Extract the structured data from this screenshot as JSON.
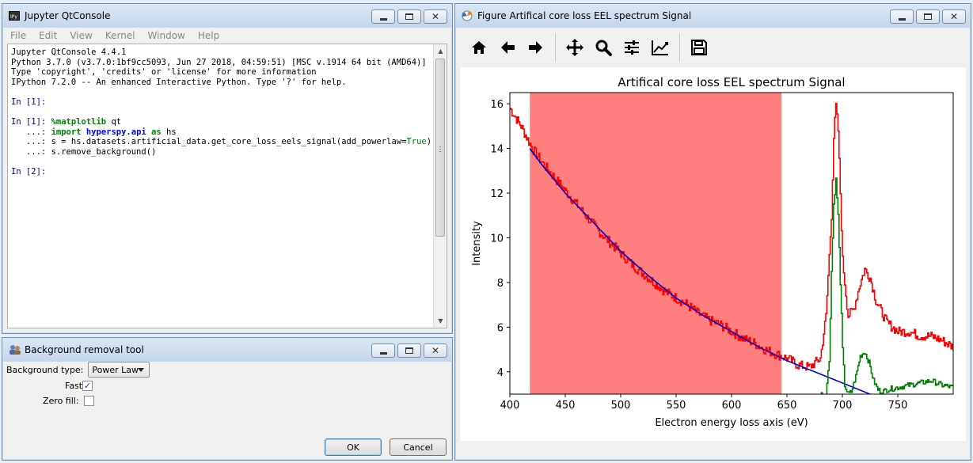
{
  "console": {
    "title": "Jupyter QtConsole",
    "menu": [
      "File",
      "Edit",
      "View",
      "Kernel",
      "Window",
      "Help"
    ],
    "lines": [
      "Jupyter QtConsole 4.4.1",
      "Python 3.7.0 (v3.7.0:1bf9cc5093, Jun 27 2018, 04:59:51) [MSC v.1914 64 bit (AMD64)]",
      "Type 'copyright', 'credits' or 'license' for more information",
      "IPython 7.2.0 -- An enhanced Interactive Python. Type '?' for help.",
      "",
      "In [1]:",
      "",
      "In [1]: %matplotlib qt",
      "   ...: import hyperspy.api as hs",
      "   ...: s = hs.datasets.artificial_data.get_core_loss_eels_signal(add_powerlaw=True)",
      "   ...: s.remove_background()",
      "",
      "In [2]:"
    ]
  },
  "bgtool": {
    "title": "Background removal tool",
    "type_label": "Background type:",
    "type_value": "Power Law",
    "fast_label": "Fast:",
    "fast_checked": true,
    "zero_fill_label": "Zero fill:",
    "zero_fill_checked": false,
    "ok_label": "OK",
    "cancel_label": "Cancel"
  },
  "figure": {
    "title": "Figure Artifical core loss EEL spectrum Signal",
    "toolbar_icons": [
      "home-icon",
      "back-arrow-icon",
      "forward-arrow-icon",
      "pan-icon",
      "zoom-icon",
      "subplots-config-icon",
      "edit-axes-icon",
      "save-icon"
    ]
  },
  "colors": {
    "spectrum": "#ff0000",
    "fit": "#0000cc",
    "residual": "#008000",
    "span": "#ff7f7f"
  },
  "chart_data": {
    "type": "line",
    "title": "Artifical core loss EEL spectrum Signal",
    "xlabel": "Electron energy loss axis (eV)",
    "ylabel": "Intensity",
    "xlim": [
      400,
      800
    ],
    "ylim": [
      3,
      16.5
    ],
    "xticks": [
      400,
      450,
      500,
      550,
      600,
      650,
      700,
      750
    ],
    "yticks": [
      4,
      6,
      8,
      10,
      12,
      14,
      16
    ],
    "selected_span": [
      418,
      645
    ],
    "series": [],
    "curves": [
      {
        "role": "spectrum",
        "x": [
          400,
          410,
          420,
          430,
          440,
          450,
          460,
          470,
          480,
          490,
          500,
          510,
          520,
          530,
          540,
          550,
          560,
          570,
          580,
          590,
          600,
          610,
          620,
          630,
          640,
          650,
          660,
          670,
          680,
          685,
          690,
          692,
          694,
          696,
          698,
          700,
          705,
          710,
          715,
          720,
          725,
          730,
          740,
          750,
          760,
          770,
          780,
          790,
          800
        ],
        "y": [
          15.8,
          15.0,
          14.0,
          13.3,
          12.7,
          12.1,
          11.5,
          10.9,
          10.3,
          9.8,
          9.3,
          8.8,
          8.4,
          8.0,
          7.6,
          7.3,
          7.0,
          6.6,
          6.3,
          6.1,
          5.8,
          5.5,
          5.3,
          5.0,
          4.8,
          4.6,
          4.3,
          4.2,
          4.6,
          6.5,
          11.0,
          14.5,
          15.9,
          14.8,
          12.0,
          9.0,
          6.5,
          6.8,
          7.8,
          8.6,
          8.2,
          7.2,
          6.2,
          5.8,
          5.8,
          5.6,
          5.6,
          5.4,
          5.1
        ]
      },
      {
        "role": "fit",
        "x": [
          418,
          430,
          450,
          475,
          500,
          525,
          550,
          575,
          600,
          625,
          650,
          675,
          700,
          725
        ],
        "y": [
          14.0,
          13.2,
          12.0,
          10.7,
          9.4,
          8.3,
          7.3,
          6.5,
          5.8,
          5.1,
          4.5,
          4.0,
          3.5,
          3.0
        ]
      },
      {
        "role": "residual",
        "x": [
          680,
          685,
          688,
          690,
          692,
          694,
          696,
          698,
          700,
          702,
          705,
          708,
          712,
          716,
          720,
          724,
          728,
          732,
          736,
          740,
          750,
          760,
          770,
          780,
          790,
          800
        ],
        "y": [
          3.0,
          3.0,
          4.5,
          8.5,
          11.5,
          12.6,
          11.0,
          8.0,
          5.0,
          3.4,
          3.0,
          3.1,
          3.8,
          4.7,
          4.9,
          4.4,
          3.6,
          3.2,
          3.1,
          3.2,
          3.3,
          3.4,
          3.5,
          3.6,
          3.4,
          3.3
        ]
      }
    ]
  }
}
